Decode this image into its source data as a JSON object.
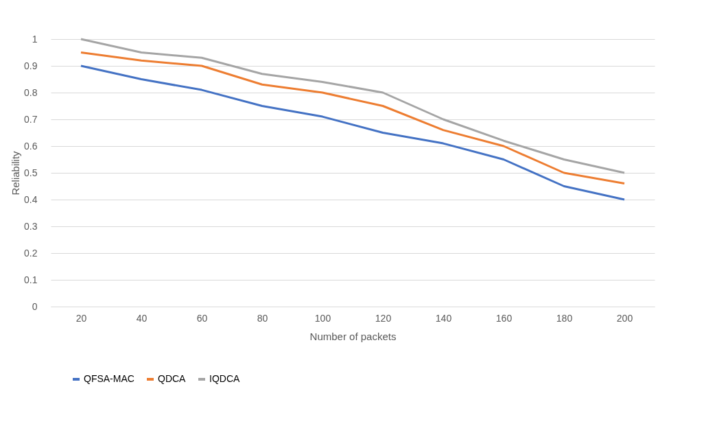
{
  "chart_data": {
    "type": "line",
    "xlabel": "Number of packets",
    "ylabel": "Reliability",
    "categories": [
      "20",
      "40",
      "60",
      "80",
      "100",
      "120",
      "140",
      "160",
      "180",
      "200"
    ],
    "series": [
      {
        "name": "QFSA-MAC",
        "color": "#4472c4",
        "values": [
          0.9,
          0.85,
          0.81,
          0.75,
          0.71,
          0.65,
          0.61,
          0.55,
          0.45,
          0.4
        ]
      },
      {
        "name": "QDCA",
        "color": "#ed7d31",
        "values": [
          0.95,
          0.92,
          0.9,
          0.83,
          0.8,
          0.75,
          0.66,
          0.6,
          0.5,
          0.46
        ]
      },
      {
        "name": "IQDCA",
        "color": "#a5a5a5",
        "values": [
          1.0,
          0.95,
          0.93,
          0.87,
          0.84,
          0.8,
          0.7,
          0.62,
          0.55,
          0.5
        ]
      }
    ],
    "ylim": [
      0,
      1
    ],
    "yticks": [
      0,
      0.1,
      0.2,
      0.3,
      0.4,
      0.5,
      0.6,
      0.7,
      0.8,
      0.9,
      1
    ],
    "grid": "y",
    "legend": "bottom",
    "marker": "none",
    "line_style": "solid"
  }
}
